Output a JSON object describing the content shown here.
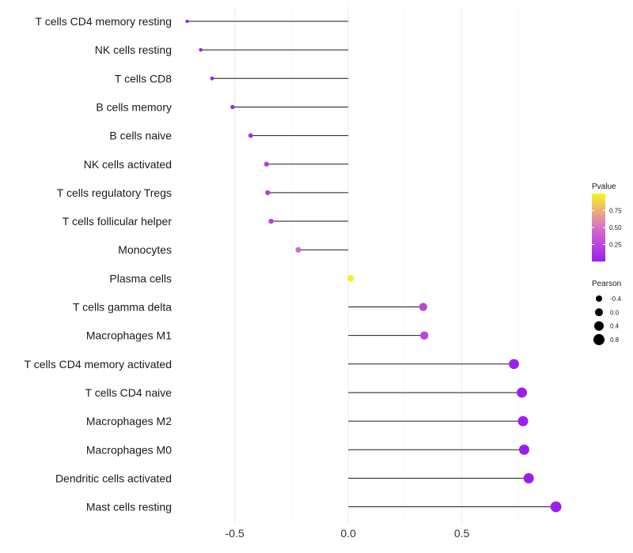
{
  "chart_data": {
    "type": "lollipop",
    "title": "",
    "xlabel": "",
    "ylabel": "",
    "xlim": [
      -0.75,
      1.0
    ],
    "x_ticks": [
      {
        "value": -0.5,
        "label": "-0.5"
      },
      {
        "value": 0.0,
        "label": "0.0"
      },
      {
        "value": 0.5,
        "label": "0.5"
      }
    ],
    "baseline": 0,
    "grid": true,
    "points": [
      {
        "category": "T cells CD4 memory resting",
        "pearson": -0.71,
        "pvalue": 0.001
      },
      {
        "category": "NK cells resting",
        "pearson": -0.65,
        "pvalue": 0.005
      },
      {
        "category": "T cells CD8",
        "pearson": -0.6,
        "pvalue": 0.01
      },
      {
        "category": "B cells memory",
        "pearson": -0.51,
        "pvalue": 0.05
      },
      {
        "category": "B cells naive",
        "pearson": -0.43,
        "pvalue": 0.1
      },
      {
        "category": "NK cells activated",
        "pearson": -0.36,
        "pvalue": 0.2
      },
      {
        "category": "T cells regulatory  Tregs ",
        "pearson": -0.355,
        "pvalue": 0.2
      },
      {
        "category": "T cells follicular helper",
        "pearson": -0.34,
        "pvalue": 0.22
      },
      {
        "category": "Monocytes",
        "pearson": -0.22,
        "pvalue": 0.45
      },
      {
        "category": "Plasma cells",
        "pearson": 0.01,
        "pvalue": 0.97
      },
      {
        "category": "T cells gamma delta",
        "pearson": 0.33,
        "pvalue": 0.25
      },
      {
        "category": "Macrophages M1",
        "pearson": 0.335,
        "pvalue": 0.24
      },
      {
        "category": "T cells CD4 memory activated",
        "pearson": 0.73,
        "pvalue": 0.005
      },
      {
        "category": "T cells CD4 naive",
        "pearson": 0.765,
        "pvalue": 0.003
      },
      {
        "category": "Macrophages M2",
        "pearson": 0.77,
        "pvalue": 0.003
      },
      {
        "category": "Macrophages M0",
        "pearson": 0.775,
        "pvalue": 0.003
      },
      {
        "category": "Dendritic cells activated",
        "pearson": 0.795,
        "pvalue": 0.002
      },
      {
        "category": "Mast cells resting",
        "pearson": 0.915,
        "pvalue": 0.0005
      }
    ],
    "legend": {
      "pvalue": {
        "title": "Pvalue",
        "range": [
          0,
          1
        ],
        "ticks": [
          {
            "value": 0.75,
            "label": "0.75"
          },
          {
            "value": 0.5,
            "label": "0.50"
          },
          {
            "value": 0.25,
            "label": "0.25"
          }
        ],
        "low_color": "#9b1fef",
        "high_color": "#fbf51f"
      },
      "pearson": {
        "title": "Pearson",
        "entries": [
          {
            "value": -0.4,
            "label": "-0.4"
          },
          {
            "value": 0.0,
            "label": "0.0"
          },
          {
            "value": 0.4,
            "label": "0.4"
          },
          {
            "value": 0.8,
            "label": "0.8"
          }
        ]
      }
    }
  }
}
